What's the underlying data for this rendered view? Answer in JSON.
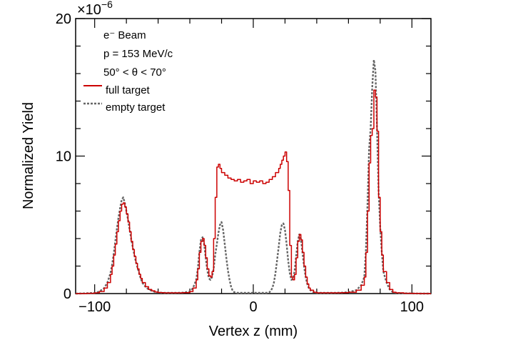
{
  "chart_data": {
    "type": "line",
    "xlabel": "Vertex z (mm)",
    "ylabel": "Normalized Yield",
    "y_exponent_label": "×10",
    "y_exponent_power": "−6",
    "xlim": [
      -112,
      112
    ],
    "ylim": [
      0,
      20
    ],
    "x_ticks": [
      -100,
      0,
      100
    ],
    "x_tick_labels": [
      "−100",
      "0",
      "100"
    ],
    "y_ticks": [
      0,
      10,
      20
    ],
    "y_tick_labels": [
      "0",
      "10",
      "20"
    ],
    "annotations": [
      "e⁻ Beam",
      "p = 153 MeV/c",
      "50° < θ < 70°"
    ],
    "series": [
      {
        "name": "full target",
        "color": "#cc0000",
        "style": "solid-step",
        "x": [
          -112,
          -110,
          -105,
          -100,
          -97,
          -94,
          -92,
          -90,
          -89,
          -88,
          -87,
          -86,
          -85,
          -84,
          -83,
          -82,
          -81,
          -80,
          -79,
          -78,
          -77,
          -76,
          -75,
          -74,
          -73,
          -72,
          -71,
          -70,
          -68,
          -66,
          -64,
          -62,
          -60,
          -58,
          -56,
          -54,
          -52,
          -50,
          -45,
          -40,
          -38,
          -36,
          -35,
          -34,
          -33,
          -32,
          -31,
          -30,
          -29,
          -28,
          -27,
          -26,
          -25,
          -24,
          -23,
          -22,
          -21,
          -20,
          -18,
          -16,
          -14,
          -12,
          -10,
          -8,
          -6,
          -4,
          -2,
          0,
          2,
          4,
          6,
          8,
          10,
          12,
          14,
          16,
          17,
          18,
          19,
          20,
          21,
          22,
          23,
          24,
          25,
          26,
          27,
          28,
          29,
          30,
          31,
          32,
          33,
          34,
          35,
          36,
          38,
          40,
          45,
          50,
          55,
          60,
          65,
          68,
          70,
          71,
          72,
          73,
          74,
          75,
          76,
          77,
          78,
          79,
          80,
          81,
          82,
          84,
          86,
          88,
          90,
          95,
          100,
          105,
          112
        ],
        "y": [
          0,
          0,
          0.02,
          0.05,
          0.15,
          0.4,
          0.8,
          1.4,
          2.0,
          2.8,
          3.6,
          4.5,
          5.3,
          6.0,
          6.5,
          6.6,
          6.3,
          5.8,
          5.2,
          4.5,
          3.8,
          3.2,
          2.7,
          2.2,
          1.8,
          1.4,
          1.1,
          0.8,
          0.5,
          0.3,
          0.2,
          0.12,
          0.08,
          0.06,
          0.05,
          0.05,
          0.05,
          0.05,
          0.06,
          0.15,
          0.4,
          1.0,
          1.8,
          3.0,
          3.8,
          4.0,
          3.5,
          2.6,
          1.8,
          1.3,
          1.2,
          1.6,
          4.0,
          7.0,
          9.2,
          9.4,
          9.1,
          8.8,
          8.6,
          8.4,
          8.3,
          8.2,
          8.3,
          8.1,
          8.2,
          8.3,
          8.0,
          8.2,
          8.1,
          8.2,
          8.0,
          8.1,
          8.3,
          8.5,
          8.8,
          9.1,
          9.4,
          9.7,
          10.0,
          10.3,
          9.6,
          7.5,
          3.5,
          1.2,
          1.0,
          1.4,
          2.6,
          3.8,
          4.3,
          3.9,
          3.0,
          2.0,
          1.2,
          0.7,
          0.4,
          0.25,
          0.1,
          0.05,
          0.05,
          0.05,
          0.06,
          0.1,
          0.25,
          0.6,
          1.2,
          3.0,
          6.0,
          9.5,
          11.5,
          12.0,
          14.8,
          14.3,
          11.8,
          7.0,
          4.5,
          2.8,
          1.6,
          0.8,
          0.3,
          0.1,
          0.05,
          0.02,
          0.01,
          0,
          0
        ]
      },
      {
        "name": "empty target",
        "color": "#666666",
        "style": "dashed",
        "x": [
          -112,
          -110,
          -105,
          -100,
          -97,
          -94,
          -92,
          -90,
          -89,
          -88,
          -87,
          -86,
          -85,
          -84,
          -83,
          -82,
          -81,
          -80,
          -79,
          -78,
          -77,
          -76,
          -75,
          -74,
          -73,
          -72,
          -71,
          -70,
          -68,
          -66,
          -64,
          -62,
          -60,
          -58,
          -56,
          -54,
          -52,
          -50,
          -45,
          -40,
          -38,
          -36,
          -35,
          -34,
          -33,
          -32,
          -31,
          -30,
          -29,
          -28,
          -27,
          -26,
          -25,
          -24,
          -23,
          -22,
          -21,
          -20,
          -19,
          -18,
          -17,
          -16,
          -15,
          -14,
          -13,
          -12,
          -10,
          -8,
          -6,
          -4,
          -2,
          0,
          2,
          4,
          6,
          8,
          10,
          11,
          12,
          13,
          14,
          15,
          16,
          17,
          18,
          19,
          20,
          21,
          22,
          23,
          24,
          25,
          26,
          27,
          28,
          29,
          30,
          31,
          32,
          33,
          34,
          35,
          36,
          38,
          40,
          45,
          50,
          55,
          60,
          65,
          68,
          70,
          71,
          72,
          73,
          74,
          75,
          76,
          77,
          78,
          79,
          80,
          81,
          82,
          84,
          86,
          88,
          90,
          95,
          100,
          105,
          112
        ],
        "y": [
          0,
          0,
          0.02,
          0.05,
          0.15,
          0.4,
          0.8,
          1.5,
          2.1,
          2.9,
          3.8,
          4.7,
          5.5,
          6.2,
          6.8,
          7.0,
          6.6,
          6.0,
          5.4,
          4.7,
          4.0,
          3.4,
          2.8,
          2.3,
          1.9,
          1.5,
          1.1,
          0.8,
          0.5,
          0.3,
          0.2,
          0.12,
          0.08,
          0.06,
          0.05,
          0.05,
          0.05,
          0.05,
          0.06,
          0.15,
          0.4,
          1.0,
          1.8,
          3.0,
          3.9,
          4.1,
          3.6,
          2.6,
          1.7,
          1.1,
          1.0,
          1.2,
          1.8,
          2.8,
          3.6,
          4.4,
          5.0,
          5.2,
          4.6,
          3.6,
          2.6,
          1.7,
          1.0,
          0.5,
          0.2,
          0.1,
          0.05,
          0.05,
          0.05,
          0.05,
          0.05,
          0.05,
          0.05,
          0.05,
          0.05,
          0.05,
          0.08,
          0.2,
          0.4,
          0.8,
          1.5,
          2.4,
          3.4,
          4.4,
          5.0,
          5.1,
          4.6,
          3.6,
          2.4,
          1.5,
          1.0,
          1.1,
          1.6,
          2.7,
          3.8,
          4.3,
          4.0,
          3.0,
          2.0,
          1.2,
          0.7,
          0.4,
          0.25,
          0.1,
          0.05,
          0.05,
          0.05,
          0.06,
          0.1,
          0.25,
          0.6,
          1.2,
          3.1,
          6.5,
          10.5,
          12.0,
          15.0,
          17.0,
          16.2,
          12.0,
          7.5,
          4.8,
          3.0,
          1.6,
          0.8,
          0.3,
          0.1,
          0.05,
          0.02,
          0.01,
          0,
          0
        ]
      }
    ]
  }
}
